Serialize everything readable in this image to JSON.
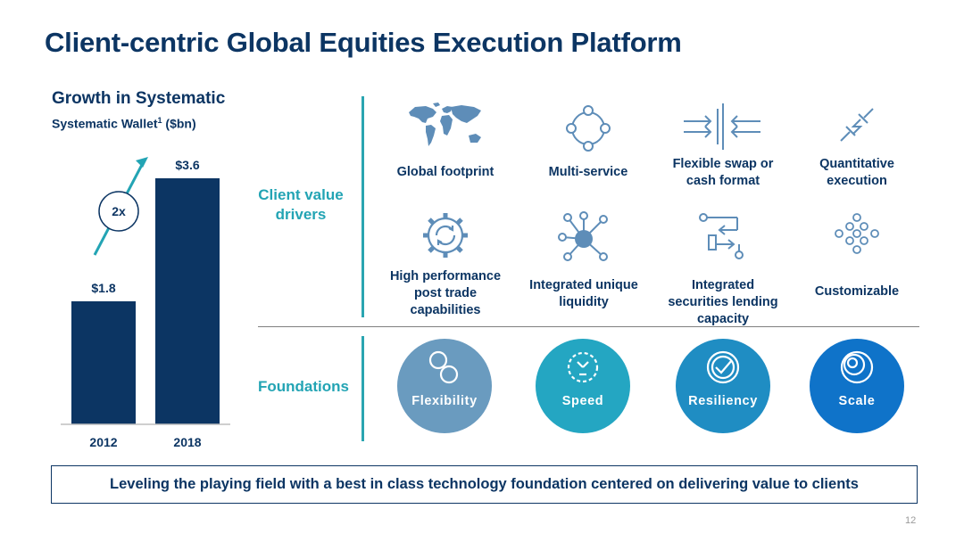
{
  "slide": {
    "title": "Client-centric Global Equities Execution Platform",
    "page_number": "12",
    "banner": "Leveling the playing field with a best in class technology foundation centered on delivering value to clients"
  },
  "chart_data": {
    "type": "bar",
    "title": "Growth in Systematic",
    "subtitle_main": "Systematic Wallet",
    "subtitle_sup": "1",
    "subtitle_unit": " ($bn)",
    "categories": [
      "2012",
      "2018"
    ],
    "values": [
      1.8,
      3.6
    ],
    "value_labels": [
      "$1.8",
      "$3.6"
    ],
    "annotation": "2x",
    "ylim": [
      0,
      3.6
    ],
    "grid": false,
    "legend": "none",
    "bar_color": "#0c3563"
  },
  "drivers_section": {
    "label": "Client value drivers",
    "items": [
      {
        "label": "Global footprint",
        "icon": "world-map-icon"
      },
      {
        "label": "Multi-service",
        "icon": "multi-node-circle-icon"
      },
      {
        "label": "Flexible swap or cash format",
        "icon": "opposing-arrows-icon"
      },
      {
        "label": "Quantitative execution",
        "icon": "lightning-plug-icon"
      },
      {
        "label": "High performance post trade capabilities",
        "icon": "gear-cycle-icon"
      },
      {
        "label": "Integrated unique liquidity",
        "icon": "hub-network-icon"
      },
      {
        "label": "Integrated securities lending capacity",
        "icon": "flow-path-icon"
      },
      {
        "label": "Customizable",
        "icon": "node-grid-icon"
      }
    ]
  },
  "foundations_section": {
    "label": "Foundations",
    "items": [
      {
        "label": "Flexibility",
        "color": "#6a9bbf",
        "icon": "infinity-icon"
      },
      {
        "label": "Speed",
        "color": "#24a6c2",
        "icon": "stopwatch-icon"
      },
      {
        "label": "Resiliency",
        "color": "#1f8dc3",
        "icon": "shield-check-icon"
      },
      {
        "label": "Scale",
        "color": "#0f73c9",
        "icon": "concentric-circles-icon"
      }
    ]
  },
  "colors": {
    "navy": "#0c3563",
    "teal": "#23a4b4",
    "icon_blue": "#5e8db8"
  }
}
